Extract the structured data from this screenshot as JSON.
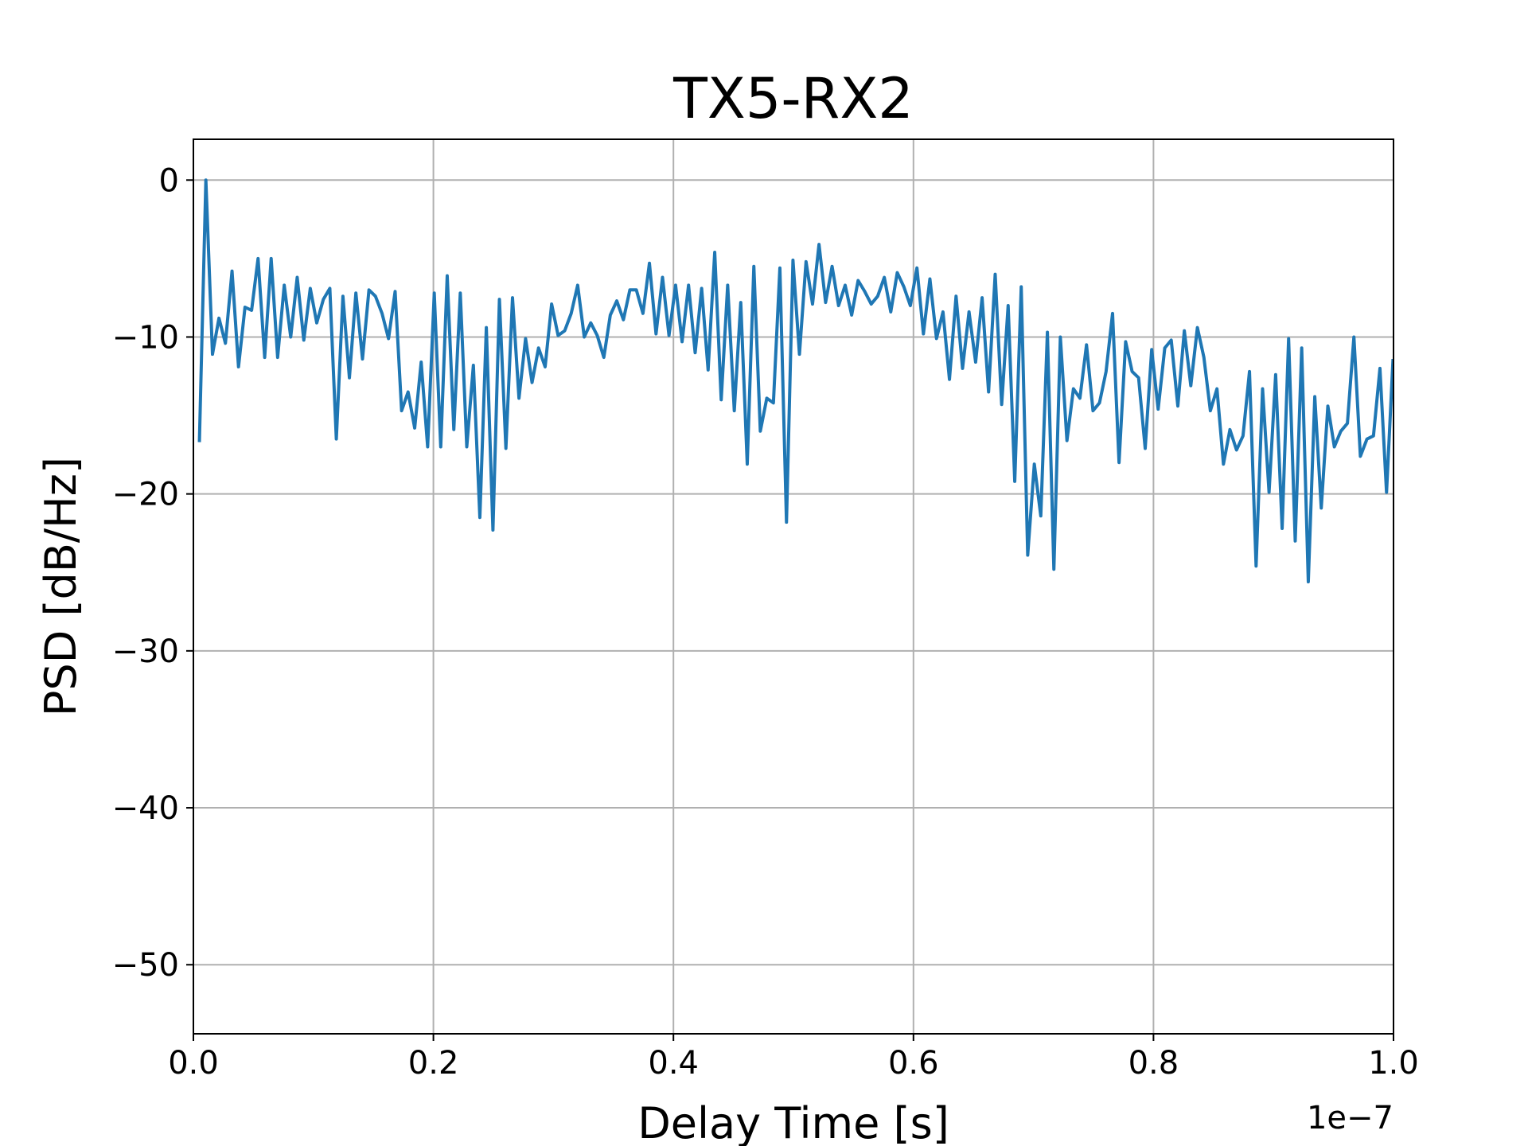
{
  "chart_data": {
    "type": "line",
    "title": "TX5-RX2",
    "x_label": "Delay Time [s]",
    "y_label": "PSD [dB/Hz]",
    "x_offset_label": "1e−7",
    "color": "#1f77b4",
    "grid": true,
    "xlim": [
      0,
      1e-07
    ],
    "ylim": [
      -54.4,
      2.6
    ],
    "xticks": [
      {
        "value": 0,
        "label": "0.0"
      },
      {
        "value": 2e-08,
        "label": "0.2"
      },
      {
        "value": 4e-08,
        "label": "0.4"
      },
      {
        "value": 6e-08,
        "label": "0.6"
      },
      {
        "value": 8e-08,
        "label": "0.8"
      },
      {
        "value": 1e-07,
        "label": "1.0"
      }
    ],
    "yticks": [
      0,
      {
        "value": -10,
        "label": "−10"
      },
      {
        "value": -20,
        "label": "−20"
      },
      {
        "value": -30,
        "label": "−30"
      },
      {
        "value": -40,
        "label": "−40"
      },
      {
        "value": -50,
        "label": "−50"
      }
    ],
    "x": [
      5e-10,
      1.04e-09,
      1.59e-09,
      2.13e-09,
      2.67e-09,
      3.22e-09,
      3.76e-09,
      4.3e-09,
      4.85e-09,
      5.39e-09,
      5.94e-09,
      6.48e-09,
      7.02e-09,
      7.57e-09,
      8.11e-09,
      8.65e-09,
      9.2e-09,
      9.74e-09,
      1.028e-08,
      1.083e-08,
      1.137e-08,
      1.191e-08,
      1.246e-08,
      1.3e-08,
      1.354e-08,
      1.409e-08,
      1.463e-08,
      1.517e-08,
      1.572e-08,
      1.626e-08,
      1.681e-08,
      1.735e-08,
      1.789e-08,
      1.844e-08,
      1.898e-08,
      1.952e-08,
      2.007e-08,
      2.061e-08,
      2.115e-08,
      2.17e-08,
      2.224e-08,
      2.278e-08,
      2.333e-08,
      2.387e-08,
      2.441e-08,
      2.496e-08,
      2.55e-08,
      2.604e-08,
      2.659e-08,
      2.713e-08,
      2.768e-08,
      2.822e-08,
      2.876e-08,
      2.931e-08,
      2.985e-08,
      3.039e-08,
      3.094e-08,
      3.148e-08,
      3.202e-08,
      3.257e-08,
      3.311e-08,
      3.365e-08,
      3.42e-08,
      3.474e-08,
      3.528e-08,
      3.583e-08,
      3.637e-08,
      3.691e-08,
      3.746e-08,
      3.8e-08,
      3.855e-08,
      3.909e-08,
      3.963e-08,
      4.018e-08,
      4.072e-08,
      4.126e-08,
      4.181e-08,
      4.235e-08,
      4.289e-08,
      4.344e-08,
      4.398e-08,
      4.452e-08,
      4.507e-08,
      4.561e-08,
      4.615e-08,
      4.67e-08,
      4.724e-08,
      4.778e-08,
      4.833e-08,
      4.887e-08,
      4.942e-08,
      4.996e-08,
      5.05e-08,
      5.105e-08,
      5.159e-08,
      5.213e-08,
      5.268e-08,
      5.322e-08,
      5.376e-08,
      5.431e-08,
      5.485e-08,
      5.539e-08,
      5.594e-08,
      5.648e-08,
      5.702e-08,
      5.757e-08,
      5.811e-08,
      5.865e-08,
      5.92e-08,
      5.974e-08,
      6.029e-08,
      6.083e-08,
      6.137e-08,
      6.192e-08,
      6.246e-08,
      6.3e-08,
      6.355e-08,
      6.409e-08,
      6.463e-08,
      6.518e-08,
      6.572e-08,
      6.626e-08,
      6.681e-08,
      6.735e-08,
      6.789e-08,
      6.844e-08,
      6.898e-08,
      6.952e-08,
      7.007e-08,
      7.061e-08,
      7.116e-08,
      7.17e-08,
      7.224e-08,
      7.279e-08,
      7.333e-08,
      7.387e-08,
      7.442e-08,
      7.496e-08,
      7.55e-08,
      7.605e-08,
      7.659e-08,
      7.713e-08,
      7.768e-08,
      7.822e-08,
      7.876e-08,
      7.931e-08,
      7.985e-08,
      8.039e-08,
      8.094e-08,
      8.148e-08,
      8.203e-08,
      8.257e-08,
      8.311e-08,
      8.366e-08,
      8.42e-08,
      8.474e-08,
      8.529e-08,
      8.583e-08,
      8.637e-08,
      8.692e-08,
      8.746e-08,
      8.8e-08,
      8.855e-08,
      8.909e-08,
      8.963e-08,
      9.018e-08,
      9.072e-08,
      9.126e-08,
      9.181e-08,
      9.235e-08,
      9.29e-08,
      9.344e-08,
      9.398e-08,
      9.453e-08,
      9.507e-08,
      9.561e-08,
      9.616e-08,
      9.67e-08,
      9.724e-08,
      9.779e-08,
      9.833e-08,
      9.887e-08,
      9.942e-08,
      9.996e-08
    ],
    "values": [
      -16.7,
      0,
      -11.1,
      -8.8,
      -10.4,
      -5.8,
      -11.9,
      -8.1,
      -8.3,
      -5,
      -11.3,
      -5,
      -11.3,
      -6.7,
      -10,
      -6.2,
      -10.2,
      -6.9,
      -9.1,
      -7.6,
      -6.9,
      -16.5,
      -7.4,
      -12.6,
      -7.2,
      -11.4,
      -7,
      -7.4,
      -8.5,
      -10.1,
      -7.1,
      -14.7,
      -13.5,
      -15.8,
      -11.6,
      -17,
      -7.2,
      -17,
      -6.1,
      -15.9,
      -7.2,
      -17,
      -11.8,
      -21.5,
      -9.4,
      -22.3,
      -7.6,
      -17.1,
      -7.5,
      -13.9,
      -10.1,
      -12.9,
      -10.7,
      -11.9,
      -7.9,
      -9.9,
      -9.6,
      -8.5,
      -6.7,
      -10,
      -9.1,
      -9.9,
      -11.3,
      -8.6,
      -7.7,
      -8.9,
      -7,
      -7,
      -8.5,
      -5.3,
      -9.8,
      -6.2,
      -9.9,
      -6.7,
      -10.3,
      -6.7,
      -11,
      -6.9,
      -12.1,
      -4.6,
      -14,
      -6.7,
      -14.7,
      -7.8,
      -18.1,
      -5.5,
      -16,
      -13.9,
      -14.2,
      -5.6,
      -21.8,
      -5.1,
      -11.1,
      -5.2,
      -7.9,
      -4.1,
      -7.8,
      -5.5,
      -8,
      -6.7,
      -8.6,
      -6.4,
      -7.1,
      -7.9,
      -7.4,
      -6.2,
      -8.4,
      -5.9,
      -6.8,
      -8,
      -5.6,
      -9.8,
      -6.3,
      -10.1,
      -8.4,
      -12.7,
      -7.4,
      -12,
      -8.4,
      -11.6,
      -7.5,
      -13.5,
      -6,
      -14.3,
      -8,
      -19.2,
      -6.8,
      -23.9,
      -18.1,
      -21.4,
      -9.7,
      -24.8,
      -10,
      -16.6,
      -13.3,
      -13.9,
      -10.5,
      -14.7,
      -14.2,
      -12.2,
      -8.5,
      -18,
      -10.3,
      -12.2,
      -12.6,
      -17.1,
      -10.8,
      -14.6,
      -10.7,
      -10.2,
      -14.4,
      -9.6,
      -13.1,
      -9.4,
      -11.3,
      -14.7,
      -13.3,
      -18.1,
      -15.9,
      -17.2,
      -16.3,
      -12.2,
      -24.6,
      -13.3,
      -19.9,
      -12.4,
      -22.2,
      -10.1,
      -23,
      -10.7,
      -25.6,
      -13.8,
      -20.9,
      -14.4,
      -17,
      -16,
      -15.5,
      -10,
      -17.6,
      -16.5,
      -16.3,
      -12,
      -19.9,
      -11.4
    ]
  }
}
